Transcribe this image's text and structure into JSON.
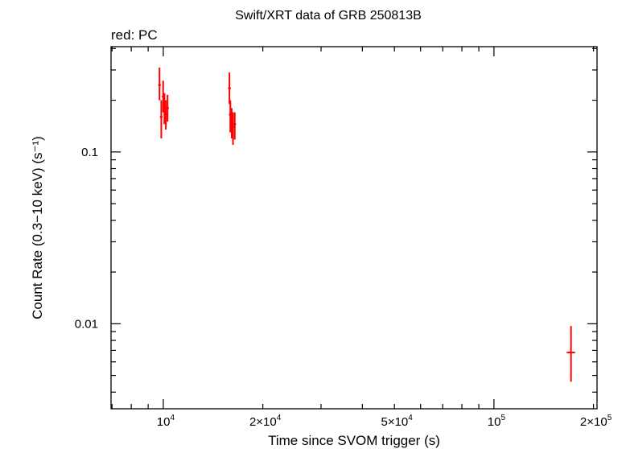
{
  "chart_data": {
    "type": "scatter",
    "title": "Swift/XRT data of GRB 250813B",
    "subtitle": "red: PC",
    "xlabel": "Time since SVOM trigger (s)",
    "ylabel": "Count Rate (0.3−10 keV) (s⁻¹)",
    "xscale": "log",
    "yscale": "log",
    "xlim": [
      6950,
      205000
    ],
    "ylim": [
      0.0032,
      0.41
    ],
    "grid": false,
    "colors": {
      "series": "#ff0000",
      "axis": "#000000"
    },
    "x_ticks": [
      {
        "value": 10000,
        "label": "10",
        "sup": "4"
      },
      {
        "value": 20000,
        "label": "2×10",
        "sup": "4"
      },
      {
        "value": 50000,
        "label": "5×10",
        "sup": "4"
      },
      {
        "value": 100000,
        "label": "10",
        "sup": "5"
      },
      {
        "value": 200000,
        "label": "2×10",
        "sup": "5"
      }
    ],
    "y_ticks": [
      {
        "value": 0.1,
        "label": "0.1"
      },
      {
        "value": 0.01,
        "label": "0.01"
      }
    ],
    "series": [
      {
        "points": [
          {
            "x": 9740,
            "x_lo": 9650,
            "x_hi": 9830,
            "y": 0.245,
            "y_lo": 0.2,
            "y_hi": 0.31
          },
          {
            "x": 9860,
            "x_lo": 9770,
            "x_hi": 9950,
            "y": 0.16,
            "y_lo": 0.12,
            "y_hi": 0.2
          },
          {
            "x": 9990,
            "x_lo": 9900,
            "x_hi": 10080,
            "y": 0.21,
            "y_lo": 0.17,
            "y_hi": 0.26
          },
          {
            "x": 10080,
            "x_lo": 9990,
            "x_hi": 10170,
            "y": 0.18,
            "y_lo": 0.145,
            "y_hi": 0.22
          },
          {
            "x": 10180,
            "x_lo": 10090,
            "x_hi": 10270,
            "y": 0.165,
            "y_lo": 0.135,
            "y_hi": 0.2
          },
          {
            "x": 10300,
            "x_lo": 10200,
            "x_hi": 10400,
            "y": 0.18,
            "y_lo": 0.15,
            "y_hi": 0.215
          },
          {
            "x": 15850,
            "x_lo": 15700,
            "x_hi": 16000,
            "y": 0.235,
            "y_lo": 0.19,
            "y_hi": 0.29
          },
          {
            "x": 15950,
            "x_lo": 15800,
            "x_hi": 16100,
            "y": 0.165,
            "y_lo": 0.13,
            "y_hi": 0.2
          },
          {
            "x": 16100,
            "x_lo": 15950,
            "x_hi": 16250,
            "y": 0.15,
            "y_lo": 0.12,
            "y_hi": 0.18
          },
          {
            "x": 16250,
            "x_lo": 16100,
            "x_hi": 16400,
            "y": 0.14,
            "y_lo": 0.11,
            "y_hi": 0.17
          },
          {
            "x": 16450,
            "x_lo": 16300,
            "x_hi": 16600,
            "y": 0.145,
            "y_lo": 0.118,
            "y_hi": 0.17
          },
          {
            "x": 171000,
            "x_lo": 166000,
            "x_hi": 176000,
            "y": 0.0068,
            "y_lo": 0.0046,
            "y_hi": 0.0097
          }
        ]
      }
    ]
  }
}
